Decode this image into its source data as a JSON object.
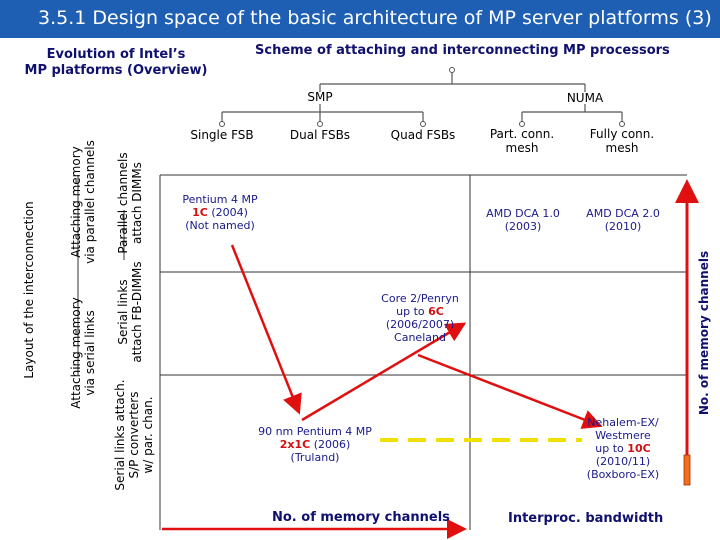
{
  "slide": {
    "title": "3.5.1 Design space of the basic architecture of MP server platforms (3)",
    "left_caption": "Evolution of Intel’s\nMP platforms (Overview)",
    "scheme_caption": "Scheme of attaching and interconnecting MP processors"
  },
  "tree": {
    "smp": "SMP",
    "numa": "NUMA",
    "columns": [
      "Single FSB",
      "Dual FSBs",
      "Quad FSBs",
      "Part. conn.\nmesh",
      "Fully conn.\nmesh"
    ]
  },
  "row_labels": {
    "outer": "Layout of the interconnection",
    "group_parallel": "Attaching memory\nvia parallel channels",
    "group_serial": "Attaching memory\nvia serial links",
    "row1": "Parallel channels\nattach DIMMs",
    "row2": "Serial links\nattach FB-DIMMs",
    "row3": "Serial links attach.\nS/P converters\nw/ par. chan."
  },
  "axis_labels": {
    "memory_channels_right": "No. of memory channels",
    "memory_channels_bottom": "No. of memory channels",
    "interproc_bandwidth": "Interproc. bandwidth"
  },
  "cells": {
    "pentium4": {
      "name": "Pentium 4 MP",
      "cores": "1C",
      "year": " (2004)",
      "code": "(Not named)"
    },
    "amd10": {
      "name": "AMD DCA 1.0",
      "year": "(2003)"
    },
    "amd20": {
      "name": "AMD DCA 2.0",
      "year": "(2010)"
    },
    "core2": {
      "name": "Core 2/Penryn",
      "pre": "up to ",
      "cores": "6C",
      "year": "(2006/2007)",
      "code": "Caneland"
    },
    "nm90": {
      "name": "90 nm Pentium 4 MP",
      "cores": "2x1C",
      "year": " (2006)",
      "code": "(Truland)"
    },
    "nehalem": {
      "name": "Nehalem-EX/\nWestmere",
      "pre": "up to ",
      "cores": "10C",
      "year": "(2010/11)",
      "code": "(Boxboro-EX)"
    }
  },
  "colors": {
    "title_bg": "#1e5fb4",
    "arrow": "#e01010",
    "dashed": "#f0e000",
    "cores": "#d01010",
    "text_blue": "#1a1a8c"
  }
}
